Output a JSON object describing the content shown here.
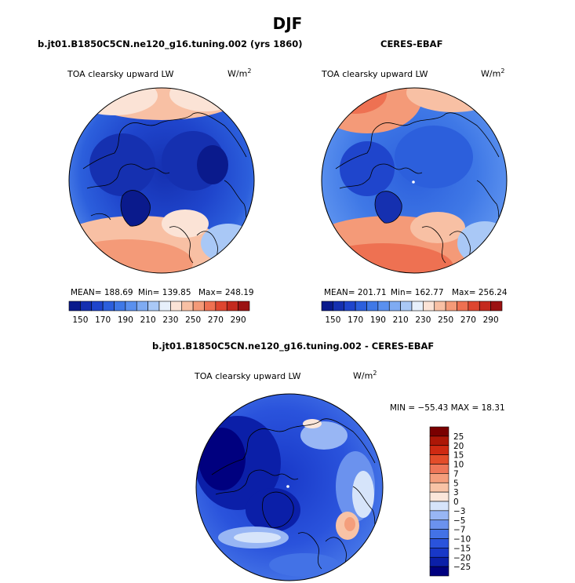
{
  "figure": {
    "season_title": "DJF",
    "panels": [
      {
        "title": "b.jt01.B1850C5CN.ne120_g16.tuning.002 (yrs 1860)",
        "variable": "TOA clearsky upward LW",
        "units": "W/m",
        "units_exp": "2",
        "mean_label": "MEAN= 188.69",
        "min_label": "Min= 139.85",
        "max_label": "Max= 248.19"
      },
      {
        "title": "CERES-EBAF",
        "variable": "TOA clearsky upward LW",
        "units": "W/m",
        "units_exp": "2",
        "mean_label": "MEAN= 201.71",
        "min_label": "Min= 162.77",
        "max_label": "Max= 256.24"
      },
      {
        "title": "b.jt01.B1850C5CN.ne120_g16.tuning.002 - CERES-EBAF",
        "variable": "TOA clearsky upward LW",
        "units": "W/m",
        "units_exp": "2",
        "minmax_label": "MIN = −55.43 MAX =  18.31"
      }
    ]
  },
  "chart_data": [
    {
      "type": "heatmap",
      "projection": "north polar stereographic",
      "title": "b.jt01.B1850C5CN.ne120_g16.tuning.002 (yrs 1860)",
      "variable": "TOA clearsky upward LW",
      "units": "W/m^2",
      "mean": 188.69,
      "min": 139.85,
      "max": 248.19,
      "colorbar": {
        "orientation": "horizontal",
        "levels": [
          150,
          160,
          170,
          180,
          190,
          200,
          210,
          220,
          230,
          240,
          250,
          260,
          270,
          280,
          290
        ],
        "tick_labels": [
          "150",
          "170",
          "190",
          "210",
          "230",
          "250",
          "270",
          "290"
        ],
        "colors": [
          "#0a1a8c",
          "#1530b0",
          "#1f45cc",
          "#2c5fdc",
          "#3f78e6",
          "#5a90ee",
          "#7fabf2",
          "#a9c8f6",
          "#e7f0fb",
          "#fbe3d6",
          "#f8c0a4",
          "#f49a78",
          "#ee7152",
          "#de4630",
          "#c42a1e",
          "#9b1212"
        ]
      },
      "field": {
        "north_pole": 150,
        "mid_latitudes": 175,
        "north_atlantic": 230,
        "north_pacific": 225,
        "greenland": 150
      }
    },
    {
      "type": "heatmap",
      "projection": "north polar stereographic",
      "title": "CERES-EBAF",
      "variable": "TOA clearsky upward LW",
      "units": "W/m^2",
      "mean": 201.71,
      "min": 162.77,
      "max": 256.24,
      "colorbar": {
        "orientation": "horizontal",
        "levels": [
          150,
          160,
          170,
          180,
          190,
          200,
          210,
          220,
          230,
          240,
          250,
          260,
          270,
          280,
          290
        ],
        "tick_labels": [
          "150",
          "170",
          "190",
          "210",
          "230",
          "250",
          "270",
          "290"
        ],
        "colors": [
          "#0a1a8c",
          "#1530b0",
          "#1f45cc",
          "#2c5fdc",
          "#3f78e6",
          "#5a90ee",
          "#7fabf2",
          "#a9c8f6",
          "#e7f0fb",
          "#fbe3d6",
          "#f8c0a4",
          "#f49a78",
          "#ee7152",
          "#de4630",
          "#c42a1e",
          "#9b1212"
        ]
      },
      "field": {
        "north_pole": 175,
        "mid_latitudes": 185,
        "north_atlantic": 255,
        "north_pacific": 245,
        "greenland": 165
      }
    },
    {
      "type": "heatmap",
      "projection": "north polar stereographic",
      "title": "b.jt01.B1850C5CN.ne120_g16.tuning.002 - CERES-EBAF",
      "variable": "TOA clearsky upward LW",
      "units": "W/m^2",
      "min": -55.43,
      "max": 18.31,
      "colorbar": {
        "orientation": "vertical",
        "levels": [
          -25,
          -20,
          -15,
          -10,
          -7,
          -5,
          -3,
          0,
          3,
          5,
          7,
          10,
          15,
          20,
          25
        ],
        "tick_labels": [
          "25",
          "20",
          "15",
          "10",
          "7",
          "5",
          "3",
          "0",
          "−3",
          "−5",
          "−7",
          "−10",
          "−15",
          "−20",
          "−25"
        ],
        "colors": [
          "#00007f",
          "#0b1fa8",
          "#1838c8",
          "#2a53dc",
          "#4372e6",
          "#6b92ee",
          "#98b6f4",
          "#d6e4fa",
          "#fbe6da",
          "#f8c3a6",
          "#f49e7c",
          "#ee7658",
          "#e34d2a",
          "#cf2a12",
          "#ad1707",
          "#7a0000"
        ]
      },
      "field": {
        "north_pole": -20,
        "eurasia": -22,
        "north_atlantic": -5,
        "siberia": -12,
        "pacific": -3
      }
    }
  ]
}
